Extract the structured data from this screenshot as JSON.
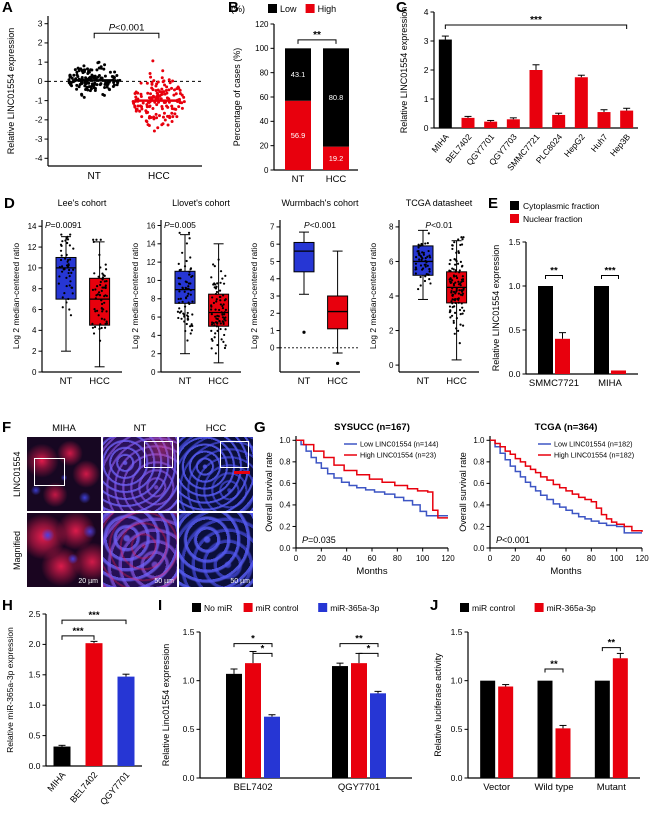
{
  "colors": {
    "black": "#000000",
    "red": "#e8000d",
    "blue": "#2636d4",
    "km_blue": "#3d55c4"
  },
  "panels": {
    "A": {
      "label": "A"
    },
    "B": {
      "label": "B"
    },
    "C": {
      "label": "C"
    },
    "D": {
      "label": "D"
    },
    "E": {
      "label": "E"
    },
    "F": {
      "label": "F",
      "cols": [
        "MIHA",
        "NT",
        "HCC"
      ],
      "rows": [
        "LINC01554",
        "Magnified"
      ],
      "scalebars": [
        "20 µm",
        "50 µm",
        "50 µm"
      ]
    },
    "G": {
      "label": "G"
    },
    "H": {
      "label": "H"
    },
    "I": {
      "label": "I"
    },
    "J": {
      "label": "J"
    }
  },
  "chart_data": [
    {
      "id": "A",
      "type": "scatter",
      "ylabel": "Relative LINC01554 expression",
      "ylim": [
        -4.4,
        3.4
      ],
      "yticks": [
        3,
        2,
        1,
        0,
        -1,
        -2,
        -3,
        -4
      ],
      "categories": [
        "NT",
        "HCC"
      ],
      "annotation": "P<0.001",
      "zero_line": 0,
      "series": [
        {
          "name": "NT",
          "color": "#000000",
          "n": 140,
          "center": 0.1,
          "sd": 0.6,
          "min": -2.4,
          "max": 1.5,
          "mean_line": 0.05
        },
        {
          "name": "HCC",
          "color": "#e8000d",
          "n": 150,
          "center": -1.0,
          "sd": 1.0,
          "min": -3.8,
          "max": 1.6,
          "mean_line": -1.0
        }
      ]
    },
    {
      "id": "B",
      "type": "stacked-bar",
      "unit": "(%)",
      "ylabel": "Percentage of cases (%)",
      "ylim": [
        0,
        120
      ],
      "yticks": [
        0,
        20,
        40,
        60,
        80,
        100,
        120
      ],
      "categories": [
        "NT",
        "HCC"
      ],
      "annotation": "**",
      "legend": [
        {
          "label": "Low",
          "color": "#000000"
        },
        {
          "label": "High",
          "color": "#e8000d"
        }
      ],
      "series": [
        {
          "name": "Low",
          "color": "#000000",
          "values": [
            43.1,
            80.8
          ]
        },
        {
          "name": "High",
          "color": "#e8000d",
          "values": [
            56.9,
            19.2
          ]
        }
      ]
    },
    {
      "id": "C",
      "type": "bar",
      "ylabel": "Relative LINC01554 expression",
      "ylim": [
        0,
        4
      ],
      "yticks": [
        0,
        1,
        2,
        3,
        4
      ],
      "categories": [
        "MIHA",
        "BEL7402",
        "QGY7701",
        "QGY7703",
        "SMMC7721",
        "PLC8024",
        "HepG2",
        "Huh7",
        "Hep3B"
      ],
      "values": [
        3.05,
        0.35,
        0.22,
        0.3,
        2.0,
        0.45,
        1.75,
        0.55,
        0.6
      ],
      "errors": [
        0.12,
        0.05,
        0.04,
        0.05,
        0.18,
        0.06,
        0.07,
        0.08,
        0.08
      ],
      "colors": [
        "#000000",
        "#e8000d",
        "#e8000d",
        "#e8000d",
        "#e8000d",
        "#e8000d",
        "#e8000d",
        "#e8000d",
        "#e8000d"
      ],
      "annotation": "***",
      "sig_y": 3.55
    },
    {
      "id": "D1",
      "type": "box",
      "title": "Lee's cohort",
      "pvalue": "P=0.0091",
      "p_pos": "left",
      "ylabel": "Log 2 median-centered ratio",
      "ylim": [
        0,
        14.6
      ],
      "yticks": [
        0,
        2,
        4,
        6,
        8,
        10,
        12,
        14
      ],
      "categories": [
        "NT",
        "HCC"
      ],
      "boxes": [
        {
          "name": "NT",
          "color": "#2636d4",
          "whislo": 2,
          "q1": 7,
          "med": 10,
          "q3": 11,
          "whishi": 13,
          "points": 50
        },
        {
          "name": "HCC",
          "color": "#e8000d",
          "whislo": 0.5,
          "q1": 4.5,
          "med": 7,
          "q3": 9,
          "whishi": 12.5,
          "points": 65
        }
      ]
    },
    {
      "id": "D2",
      "type": "box",
      "title": "Llovet's cohort",
      "pvalue": "P=0.005",
      "p_pos": "left",
      "ylabel": "Log 2 median-centered ratio",
      "ylim": [
        0,
        16.6
      ],
      "yticks": [
        0,
        2,
        4,
        6,
        8,
        10,
        12,
        14,
        16
      ],
      "categories": [
        "NT",
        "HCC"
      ],
      "boxes": [
        {
          "name": "NT",
          "color": "#2636d4",
          "whislo": 2,
          "q1": 7.5,
          "med": 9,
          "q3": 11,
          "whishi": 15,
          "points": 75
        },
        {
          "name": "HCC",
          "color": "#e8000d",
          "whislo": 1,
          "q1": 5,
          "med": 6.5,
          "q3": 8.5,
          "whishi": 14,
          "points": 85
        }
      ]
    },
    {
      "id": "D3",
      "type": "box",
      "title": "Wurmbach's cohort",
      "pvalue": "P<0.001",
      "p_pos": "center",
      "ylabel": "Log 2 median-centered ratio",
      "ylim": [
        -1.4,
        7.4
      ],
      "yticks": [
        0,
        1,
        2,
        3,
        4,
        5,
        6,
        7
      ],
      "zero_line": 0,
      "categories": [
        "NT",
        "HCC"
      ],
      "boxes": [
        {
          "name": "NT",
          "color": "#2636d4",
          "whislo": 3.1,
          "q1": 4.4,
          "med": 5.6,
          "q3": 6.1,
          "whishi": 6.7,
          "outliers": [
            0.9
          ]
        },
        {
          "name": "HCC",
          "color": "#e8000d",
          "whislo": -0.3,
          "q1": 1.1,
          "med": 2.1,
          "q3": 3.0,
          "whishi": 5.6,
          "outliers": [
            -0.9
          ]
        }
      ]
    },
    {
      "id": "D4",
      "type": "box",
      "title": "TCGA datasheet",
      "pvalue": "P<0.01",
      "p_pos": "center",
      "ylabel": "Log 2 median-centered ratio",
      "ylim": [
        -0.4,
        8.4
      ],
      "yticks": [
        0,
        2,
        4,
        6,
        8
      ],
      "categories": [
        "NT",
        "HCC"
      ],
      "boxes": [
        {
          "name": "NT",
          "color": "#2636d4",
          "whislo": 3.8,
          "q1": 5.2,
          "med": 6.0,
          "q3": 6.9,
          "whishi": 7.8,
          "points": 55
        },
        {
          "name": "HCC",
          "color": "#e8000d",
          "whislo": 0.3,
          "q1": 3.6,
          "med": 4.5,
          "q3": 5.4,
          "whishi": 7.2,
          "points": 110
        }
      ]
    },
    {
      "id": "E",
      "type": "grouped-bar",
      "ylabel": "Relative LINC01554 expression",
      "ylim": [
        0,
        1.5
      ],
      "yticks": [
        0,
        0.5,
        1,
        1.5
      ],
      "categories": [
        "SMMC7721",
        "MIHA"
      ],
      "legend": [
        {
          "label": "Cytoplasmic fraction",
          "color": "#000000"
        },
        {
          "label": "Nuclear fraction",
          "color": "#e8000d"
        }
      ],
      "series": [
        {
          "name": "Cytoplasmic fraction",
          "color": "#000000",
          "values": [
            1.0,
            1.0
          ],
          "errors": [
            0,
            0
          ]
        },
        {
          "name": "Nuclear fraction",
          "color": "#e8000d",
          "values": [
            0.4,
            0.04
          ],
          "errors": [
            0.07,
            0.015
          ]
        }
      ],
      "sig": [
        {
          "group": 0,
          "from": 0,
          "to": 1,
          "y": 1.12,
          "label": "**"
        },
        {
          "group": 1,
          "from": 0,
          "to": 1,
          "y": 1.12,
          "label": "***"
        }
      ]
    },
    {
      "id": "G1",
      "type": "km",
      "title": "SYSUCC (n=167)",
      "xlabel": "Months",
      "ylabel": "Overall survival rate",
      "xlim": [
        0,
        120
      ],
      "xticks": [
        0,
        20,
        40,
        60,
        80,
        100,
        120
      ],
      "ylim": [
        0,
        1.04
      ],
      "yticks": [
        0,
        0.2,
        0.4,
        0.6,
        0.8,
        1
      ],
      "pvalue": "P=0.035",
      "series": [
        {
          "name": "Low LINC01554 (n=144)",
          "color": "#3d55c4",
          "steps": [
            [
              0,
              1.0
            ],
            [
              4,
              0.96
            ],
            [
              8,
              0.9
            ],
            [
              12,
              0.84
            ],
            [
              16,
              0.79
            ],
            [
              20,
              0.74
            ],
            [
              25,
              0.69
            ],
            [
              30,
              0.65
            ],
            [
              36,
              0.61
            ],
            [
              42,
              0.58
            ],
            [
              48,
              0.56
            ],
            [
              55,
              0.54
            ],
            [
              62,
              0.52
            ],
            [
              70,
              0.5
            ],
            [
              78,
              0.47
            ],
            [
              85,
              0.44
            ],
            [
              92,
              0.4
            ],
            [
              98,
              0.34
            ],
            [
              103,
              0.3
            ],
            [
              112,
              0.3
            ]
          ]
        },
        {
          "name": "High LINC01554 (n=23)",
          "color": "#e8000d",
          "steps": [
            [
              0,
              1.0
            ],
            [
              6,
              0.96
            ],
            [
              14,
              0.9
            ],
            [
              22,
              0.84
            ],
            [
              30,
              0.77
            ],
            [
              38,
              0.72
            ],
            [
              48,
              0.68
            ],
            [
              58,
              0.64
            ],
            [
              68,
              0.61
            ],
            [
              78,
              0.58
            ],
            [
              88,
              0.55
            ],
            [
              96,
              0.53
            ],
            [
              104,
              0.52
            ],
            [
              108,
              0.35
            ],
            [
              112,
              0.28
            ]
          ]
        }
      ]
    },
    {
      "id": "G2",
      "type": "km",
      "title": "TCGA (n=364)",
      "xlabel": "Months",
      "ylabel": "Overall survival rate",
      "xlim": [
        0,
        120
      ],
      "xticks": [
        0,
        20,
        40,
        60,
        80,
        100,
        120
      ],
      "ylim": [
        0,
        1.04
      ],
      "yticks": [
        0,
        0.2,
        0.4,
        0.6,
        0.8,
        1
      ],
      "pvalue": "P<0.001",
      "series": [
        {
          "name": "Low LINC01554 (n=182)",
          "color": "#3d55c4",
          "steps": [
            [
              0,
              1.0
            ],
            [
              4,
              0.94
            ],
            [
              8,
              0.88
            ],
            [
              12,
              0.82
            ],
            [
              16,
              0.76
            ],
            [
              20,
              0.71
            ],
            [
              24,
              0.66
            ],
            [
              28,
              0.61
            ],
            [
              32,
              0.57
            ],
            [
              36,
              0.53
            ],
            [
              40,
              0.49
            ],
            [
              45,
              0.45
            ],
            [
              50,
              0.41
            ],
            [
              55,
              0.38
            ],
            [
              60,
              0.35
            ],
            [
              65,
              0.32
            ],
            [
              70,
              0.29
            ],
            [
              75,
              0.27
            ],
            [
              80,
              0.25
            ],
            [
              86,
              0.23
            ],
            [
              92,
              0.21
            ],
            [
              100,
              0.2
            ],
            [
              106,
              0.14
            ],
            [
              120,
              0.14
            ]
          ]
        },
        {
          "name": "High LINC01554 (n=182)",
          "color": "#e8000d",
          "steps": [
            [
              0,
              1.0
            ],
            [
              4,
              0.97
            ],
            [
              8,
              0.94
            ],
            [
              12,
              0.9
            ],
            [
              16,
              0.87
            ],
            [
              20,
              0.83
            ],
            [
              24,
              0.8
            ],
            [
              28,
              0.76
            ],
            [
              32,
              0.73
            ],
            [
              36,
              0.7
            ],
            [
              40,
              0.66
            ],
            [
              45,
              0.63
            ],
            [
              50,
              0.59
            ],
            [
              55,
              0.56
            ],
            [
              60,
              0.53
            ],
            [
              65,
              0.5
            ],
            [
              70,
              0.47
            ],
            [
              75,
              0.45
            ],
            [
              80,
              0.43
            ],
            [
              84,
              0.37
            ],
            [
              88,
              0.31
            ],
            [
              92,
              0.27
            ],
            [
              96,
              0.24
            ],
            [
              100,
              0.22
            ],
            [
              106,
              0.2
            ],
            [
              112,
              0.16
            ],
            [
              120,
              0.15
            ]
          ]
        }
      ]
    },
    {
      "id": "H",
      "type": "bar",
      "ylabel": "Relative miR-365a-3p expression",
      "ylim": [
        0,
        2.5
      ],
      "yticks": [
        0,
        0.5,
        1,
        1.5,
        2,
        2.5
      ],
      "categories": [
        "MIHA",
        "BEL7402",
        "QGY7701"
      ],
      "values": [
        0.32,
        2.02,
        1.47
      ],
      "errors": [
        0.02,
        0.03,
        0.04
      ],
      "colors": [
        "#000000",
        "#e8000d",
        "#2636d4"
      ],
      "sig": [
        {
          "from": 0,
          "to": 1,
          "y": 2.14,
          "label": "***"
        },
        {
          "from": 0,
          "to": 2,
          "y": 2.4,
          "label": "***"
        }
      ]
    },
    {
      "id": "I",
      "type": "grouped-bar",
      "ylabel": "Relative Linc01554 expression",
      "ylim": [
        0,
        1.5
      ],
      "yticks": [
        0,
        0.5,
        1,
        1.5
      ],
      "categories": [
        "BEL7402",
        "QGY7701"
      ],
      "legend": [
        {
          "label": "No miR",
          "color": "#000000"
        },
        {
          "label": "miR control",
          "color": "#e8000d"
        },
        {
          "label": "miR-365a-3p",
          "color": "#2636d4"
        }
      ],
      "series": [
        {
          "name": "No miR",
          "color": "#000000",
          "values": [
            1.07,
            1.15
          ],
          "errors": [
            0.05,
            0.03
          ]
        },
        {
          "name": "miR control",
          "color": "#e8000d",
          "values": [
            1.18,
            1.18
          ],
          "errors": [
            0.12,
            0.1
          ]
        },
        {
          "name": "miR-365a-3p",
          "color": "#2636d4",
          "values": [
            0.63,
            0.87
          ],
          "errors": [
            0.02,
            0.02
          ]
        }
      ],
      "sig": [
        {
          "group": 0,
          "from": 0,
          "to": 2,
          "y": 1.38,
          "label": "*"
        },
        {
          "group": 0,
          "from": 1,
          "to": 2,
          "y": 1.28,
          "label": "*"
        },
        {
          "group": 1,
          "from": 0,
          "to": 2,
          "y": 1.38,
          "label": "**"
        },
        {
          "group": 1,
          "from": 1,
          "to": 2,
          "y": 1.28,
          "label": "*"
        }
      ]
    },
    {
      "id": "J",
      "type": "grouped-bar",
      "ylabel": "Relative luciferase activity",
      "ylim": [
        0,
        1.5
      ],
      "yticks": [
        0,
        0.5,
        1,
        1.5
      ],
      "categories": [
        "Vector",
        "Wild type",
        "Mutant"
      ],
      "legend": [
        {
          "label": "miR control",
          "color": "#000000"
        },
        {
          "label": "miR-365a-3p",
          "color": "#e8000d"
        }
      ],
      "series": [
        {
          "name": "miR control",
          "color": "#000000",
          "values": [
            1.0,
            1.0,
            1.0
          ],
          "errors": [
            0.01,
            0.01,
            0.01
          ]
        },
        {
          "name": "miR-365a-3p",
          "color": "#e8000d",
          "values": [
            0.94,
            0.51,
            1.23
          ],
          "errors": [
            0.02,
            0.03,
            0.05
          ]
        }
      ],
      "sig": [
        {
          "group": 1,
          "from": 0,
          "to": 1,
          "y": 1.12,
          "label": "**"
        },
        {
          "group": 2,
          "from": 0,
          "to": 1,
          "y": 1.34,
          "label": "**"
        }
      ]
    }
  ]
}
